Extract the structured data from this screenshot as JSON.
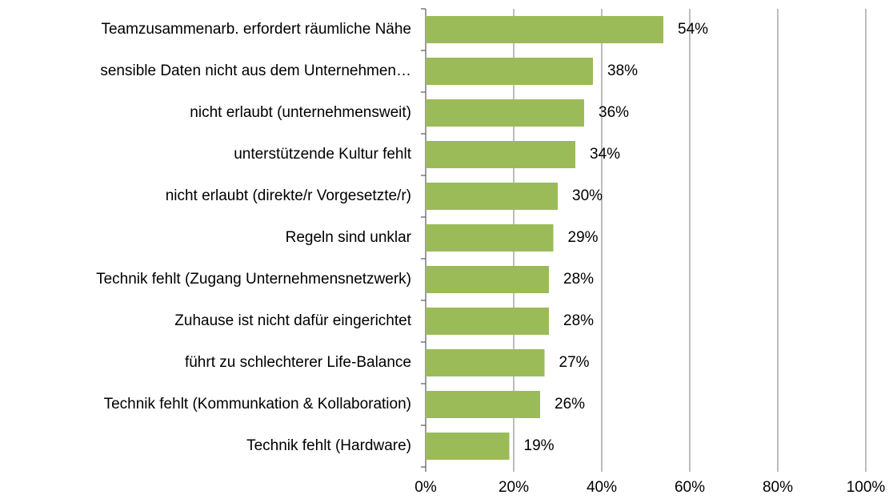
{
  "chart_data": {
    "type": "bar",
    "orientation": "horizontal",
    "categories": [
      "Teamzusammenarb. erfordert räumliche Nähe",
      "sensible Daten nicht aus dem Unternehmen…",
      "nicht erlaubt (unternehmensweit)",
      "unterstützende Kultur fehlt",
      "nicht erlaubt (direkte/r Vorgesetzte/r)",
      "Regeln sind unklar",
      "Technik fehlt (Zugang Unternehmensnetzwerk)",
      "Zuhause ist nicht dafür eingerichtet",
      "führt zu schlechterer Life-Balance",
      "Technik fehlt (Kommunkation & Kollaboration)",
      "Technik fehlt (Hardware)"
    ],
    "values": [
      54,
      38,
      36,
      34,
      30,
      29,
      28,
      28,
      27,
      26,
      19
    ],
    "value_labels": [
      "54%",
      "38%",
      "36%",
      "34%",
      "30%",
      "29%",
      "28%",
      "28%",
      "27%",
      "26%",
      "19%"
    ],
    "color": "#9bbb59",
    "xlim": [
      0,
      100
    ],
    "xticks": [
      {
        "value": 0,
        "label": "0%"
      },
      {
        "value": 20,
        "label": "20%"
      },
      {
        "value": 40,
        "label": "40%"
      },
      {
        "value": 60,
        "label": "60%"
      },
      {
        "value": 80,
        "label": "80%"
      },
      {
        "value": 100,
        "label": "100%"
      }
    ],
    "grid": true
  }
}
